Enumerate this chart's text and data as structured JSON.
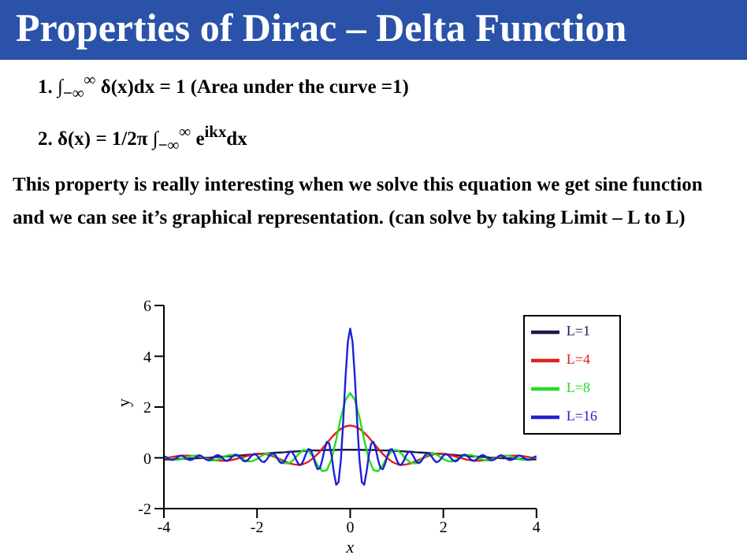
{
  "chart_data": {
    "type": "line",
    "title": "Properties of Dirac – Delta Function",
    "annotations": [
      "1.  ∫$_{−∞}$$^{∞}$ δ(x)dx = 1   (Area under the curve =1)",
      "2.  δ(x) = 1/2π ∫$_{−∞}$$^{∞}$ e$^{ikx}$dx",
      "This property is really interesting when we solve this equation we get sine function and we can see it’s graphical representation. (can solve by taking Limit – L to L)"
    ],
    "xlabel": "x",
    "ylabel": "y",
    "xlim": [
      -4,
      4
    ],
    "xticks": [
      -4,
      -2,
      0,
      2,
      4
    ],
    "ylim": [
      -2,
      6
    ],
    "yticks": [
      -2,
      0,
      2,
      4,
      6
    ],
    "legend": "top right",
    "marker": "none",
    "x": [
      -4,
      -3.9,
      -3.8,
      -3.7,
      -3.6,
      -3.5,
      -3.4,
      -3.3,
      -3.2,
      -3.1,
      -3,
      -2.9,
      -2.8,
      -2.7,
      -2.6,
      -2.5,
      -2.4,
      -2.3,
      -2.2,
      -2.1,
      -2,
      -1.9,
      -1.8,
      -1.7,
      -1.6,
      -1.5,
      -1.4,
      -1.3,
      -1.2,
      -1.1,
      -1,
      -0.9,
      -0.8,
      -0.7,
      -0.6,
      -0.5,
      -0.4,
      -0.3,
      -0.2,
      -0.1,
      0,
      0.1,
      0.2,
      0.3,
      0.4,
      0.5,
      0.6,
      0.7,
      0.8,
      0.9,
      1,
      1.1,
      1.2,
      1.3,
      1.4,
      1.5,
      1.6,
      1.7,
      1.8,
      1.9,
      2,
      2.1,
      2.2,
      2.3,
      2.4,
      2.5,
      2.6,
      2.7,
      2.8,
      2.9,
      3,
      3.1,
      3.2,
      3.3,
      3.4,
      3.5,
      3.6,
      3.7,
      3.8,
      3.9,
      4
    ],
    "series": [
      {
        "name": "L=1",
        "color": "#1a1a4e",
        "values": [
          -0.06,
          -0.06,
          -0.05,
          -0.05,
          -0.04,
          -0.03,
          -0.02,
          -0.02,
          -0.01,
          0.0,
          0.01,
          0.03,
          0.04,
          0.05,
          0.06,
          0.08,
          0.09,
          0.1,
          0.12,
          0.13,
          0.15,
          0.16,
          0.17,
          0.19,
          0.2,
          0.21,
          0.22,
          0.24,
          0.25,
          0.26,
          0.27,
          0.28,
          0.29,
          0.29,
          0.3,
          0.31,
          0.31,
          0.31,
          0.32,
          0.32,
          0.32,
          0.32,
          0.32,
          0.31,
          0.31,
          0.31,
          0.3,
          0.29,
          0.29,
          0.28,
          0.27,
          0.26,
          0.25,
          0.24,
          0.22,
          0.21,
          0.2,
          0.19,
          0.17,
          0.16,
          0.15,
          0.13,
          0.12,
          0.1,
          0.09,
          0.08,
          0.06,
          0.05,
          0.04,
          0.03,
          0.01,
          0.0,
          -0.01,
          -0.02,
          -0.02,
          -0.03,
          -0.04,
          -0.05,
          -0.05,
          -0.06,
          -0.06
        ]
      },
      {
        "name": "L=4",
        "color": "#e0201c",
        "values": [
          -0.02,
          0.01,
          0.04,
          0.07,
          0.09,
          0.09,
          0.08,
          0.06,
          0.02,
          -0.02,
          -0.06,
          -0.09,
          -0.11,
          -0.12,
          -0.1,
          -0.07,
          -0.02,
          0.03,
          0.08,
          0.13,
          0.16,
          0.16,
          0.14,
          0.09,
          0.02,
          -0.06,
          -0.14,
          -0.22,
          -0.26,
          -0.28,
          -0.24,
          -0.16,
          -0.02,
          0.15,
          0.36,
          0.58,
          0.8,
          0.99,
          1.14,
          1.24,
          1.27,
          1.24,
          1.14,
          0.99,
          0.8,
          0.58,
          0.36,
          0.15,
          -0.02,
          -0.16,
          -0.24,
          -0.28,
          -0.26,
          -0.22,
          -0.14,
          -0.06,
          0.02,
          0.09,
          0.14,
          0.16,
          0.16,
          0.13,
          0.08,
          0.03,
          -0.02,
          -0.07,
          -0.1,
          -0.12,
          -0.11,
          -0.09,
          -0.06,
          -0.02,
          0.02,
          0.06,
          0.08,
          0.09,
          0.09,
          0.07,
          0.04,
          0.01,
          -0.02
        ]
      },
      {
        "name": "L=8",
        "color": "#22dd22",
        "values": [
          0.04,
          -0.02,
          -0.07,
          -0.08,
          -0.04,
          0.02,
          0.08,
          0.09,
          0.04,
          -0.03,
          -0.1,
          -0.1,
          -0.05,
          0.05,
          0.11,
          0.12,
          0.05,
          -0.06,
          -0.14,
          -0.13,
          -0.05,
          0.08,
          0.17,
          0.16,
          0.05,
          -0.11,
          -0.22,
          -0.2,
          -0.05,
          0.17,
          0.31,
          0.28,
          0.05,
          -0.29,
          -0.53,
          -0.48,
          -0.05,
          0.72,
          1.59,
          2.28,
          2.55,
          2.28,
          1.59,
          0.72,
          -0.05,
          -0.48,
          -0.53,
          -0.29,
          0.05,
          0.28,
          0.31,
          0.17,
          -0.05,
          -0.2,
          -0.22,
          -0.11,
          0.05,
          0.16,
          0.17,
          0.08,
          -0.05,
          -0.13,
          -0.14,
          -0.06,
          0.05,
          0.12,
          0.11,
          0.05,
          -0.05,
          -0.1,
          -0.1,
          -0.03,
          0.04,
          0.09,
          0.08,
          0.02,
          -0.04,
          -0.08,
          -0.07,
          -0.02,
          0.04
        ]
      },
      {
        "name": "L=16",
        "color": "#1f1fd6",
        "x": [
          -4,
          -3.95,
          -3.9,
          -3.85,
          -3.8,
          -3.75,
          -3.7,
          -3.65,
          -3.6,
          -3.55,
          -3.5,
          -3.45,
          -3.4,
          -3.35,
          -3.3,
          -3.25,
          -3.2,
          -3.15,
          -3.1,
          -3.05,
          -3,
          -2.95,
          -2.9,
          -2.85,
          -2.8,
          -2.75,
          -2.7,
          -2.65,
          -2.6,
          -2.55,
          -2.5,
          -2.45,
          -2.4,
          -2.35,
          -2.3,
          -2.25,
          -2.2,
          -2.15,
          -2.1,
          -2.05,
          -2,
          -1.95,
          -1.9,
          -1.85,
          -1.8,
          -1.75,
          -1.7,
          -1.65,
          -1.6,
          -1.55,
          -1.5,
          -1.45,
          -1.4,
          -1.35,
          -1.3,
          -1.25,
          -1.2,
          -1.15,
          -1.1,
          -1.05,
          -1,
          -0.95,
          -0.9,
          -0.85,
          -0.8,
          -0.75,
          -0.7,
          -0.65,
          -0.6,
          -0.55,
          -0.5,
          -0.45,
          -0.4,
          -0.35,
          -0.3,
          -0.25,
          -0.2,
          -0.15,
          -0.1,
          -0.05,
          0,
          0.05,
          0.1,
          0.15,
          0.2,
          0.25,
          0.3,
          0.35,
          0.4,
          0.45,
          0.5,
          0.55,
          0.6,
          0.65,
          0.7,
          0.75,
          0.8,
          0.85,
          0.9,
          0.95,
          1,
          1.05,
          1.1,
          1.15,
          1.2,
          1.25,
          1.3,
          1.35,
          1.4,
          1.45,
          1.5,
          1.55,
          1.6,
          1.65,
          1.7,
          1.75,
          1.8,
          1.85,
          1.9,
          1.95,
          2,
          2.05,
          2.1,
          2.15,
          2.2,
          2.25,
          2.3,
          2.35,
          2.4,
          2.45,
          2.5,
          2.55,
          2.6,
          2.65,
          2.7,
          2.75,
          2.8,
          2.85,
          2.9,
          2.95,
          3,
          3.05,
          3.1,
          3.15,
          3.2,
          3.25,
          3.3,
          3.35,
          3.4,
          3.45,
          3.5,
          3.55,
          3.6,
          3.65,
          3.7,
          3.75,
          3.8,
          3.85,
          3.9,
          3.95,
          4
        ],
        "values": [
          0.07,
          0.03,
          -0.03,
          -0.08,
          -0.08,
          -0.03,
          0.04,
          0.08,
          0.08,
          0.02,
          -0.05,
          -0.09,
          -0.08,
          -0.02,
          0.05,
          0.1,
          0.08,
          0.01,
          -0.06,
          -0.1,
          -0.08,
          -0.01,
          0.07,
          0.11,
          0.08,
          0.0,
          -0.08,
          -0.12,
          -0.08,
          0.01,
          0.09,
          0.13,
          0.09,
          -0.01,
          -0.11,
          -0.14,
          -0.09,
          0.02,
          0.12,
          0.15,
          0.09,
          -0.04,
          -0.14,
          -0.17,
          -0.09,
          0.05,
          0.16,
          0.18,
          0.09,
          -0.07,
          -0.19,
          -0.21,
          -0.09,
          0.09,
          0.23,
          0.23,
          0.09,
          -0.12,
          -0.27,
          -0.27,
          -0.09,
          0.16,
          0.34,
          0.32,
          0.09,
          -0.23,
          -0.45,
          -0.41,
          -0.09,
          0.34,
          0.63,
          0.56,
          0.09,
          -0.57,
          -1.06,
          -0.96,
          -0.09,
          1.43,
          3.18,
          4.57,
          5.09,
          4.57,
          3.18,
          1.43,
          -0.09,
          -0.96,
          -1.06,
          -0.57,
          0.09,
          0.56,
          0.63,
          0.34,
          -0.09,
          -0.41,
          -0.45,
          -0.23,
          0.09,
          0.32,
          0.34,
          0.16,
          -0.09,
          -0.27,
          -0.27,
          -0.12,
          0.09,
          0.23,
          0.23,
          0.09,
          -0.09,
          -0.21,
          -0.19,
          -0.07,
          0.09,
          0.18,
          0.16,
          0.05,
          -0.09,
          -0.17,
          -0.14,
          -0.04,
          0.09,
          0.15,
          0.12,
          0.02,
          -0.09,
          -0.14,
          -0.11,
          -0.01,
          0.09,
          0.13,
          0.09,
          0.01,
          -0.08,
          -0.12,
          -0.08,
          0.0,
          0.08,
          0.11,
          0.07,
          -0.01,
          -0.08,
          -0.1,
          -0.06,
          0.01,
          0.08,
          0.1,
          0.05,
          -0.02,
          -0.08,
          -0.09,
          -0.05,
          0.02,
          0.08,
          0.08,
          0.04,
          -0.03,
          -0.08,
          -0.08,
          -0.03,
          0.03,
          0.07
        ]
      }
    ]
  }
}
